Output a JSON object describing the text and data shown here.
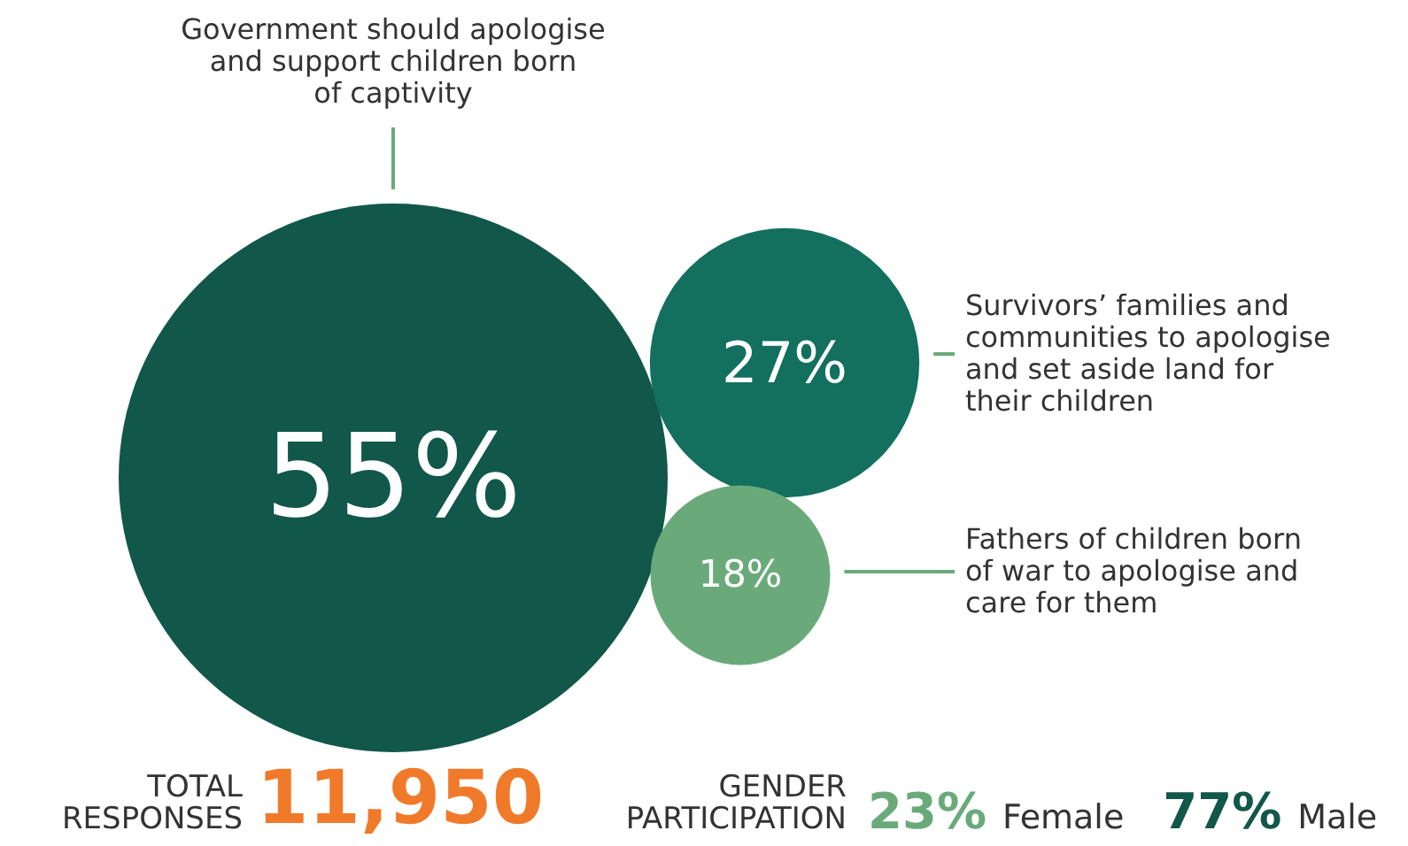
{
  "chart_data": {
    "type": "other",
    "categories": [
      "Government should apologise and support children born of captivity",
      "Survivors’ families and communities to apologise and set aside land for their children",
      "Fathers of children born of war to apologise and care for them"
    ],
    "values": [
      55,
      27,
      18
    ],
    "colors": [
      "#11574a",
      "#136f5e",
      "#6aaa7a"
    ],
    "value_labels": [
      "55%",
      "27%",
      "18%"
    ],
    "annotations": [
      "TOTAL RESPONSES",
      "11,950",
      "GENDER PARTICIPATION",
      "23%",
      "Female",
      "77%",
      "Male"
    ]
  }
}
